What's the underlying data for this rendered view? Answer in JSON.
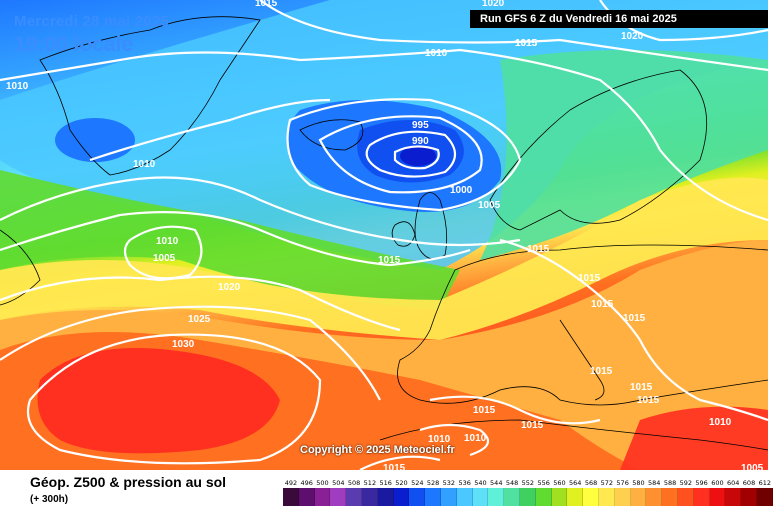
{
  "header": {
    "date_label": "Mercredi 28 mai 2025",
    "time_label": "19:00 locale",
    "run_label": "Run GFS 6 Z du Vendredi 16 mai 2025"
  },
  "copyright": "Copyright © 2025 Meteociel.fr",
  "footer": {
    "title": "Géop. Z500 & pression au sol",
    "subtitle": "(+ 300h)"
  },
  "legend": {
    "values": [
      "492",
      "496",
      "500",
      "504",
      "508",
      "512",
      "516",
      "520",
      "524",
      "528",
      "532",
      "536",
      "540",
      "544",
      "548",
      "552",
      "556",
      "560",
      "564",
      "568",
      "572",
      "576",
      "580",
      "584",
      "588",
      "592",
      "596",
      "600",
      "604",
      "608",
      "612"
    ],
    "colors": [
      "#3a0a3a",
      "#5e0e6e",
      "#8a2096",
      "#a03cc0",
      "#5a3cb0",
      "#3a28a0",
      "#1a1aa0",
      "#0a1ed0",
      "#1050f0",
      "#1e78ff",
      "#32a0ff",
      "#4ac8ff",
      "#5ee0f8",
      "#5ef0d8",
      "#50e0a0",
      "#40d060",
      "#60dc30",
      "#a0e020",
      "#e0f020",
      "#ffff40",
      "#ffe850",
      "#ffd050",
      "#ffb040",
      "#ff9030",
      "#ff7020",
      "#ff5020",
      "#ff3020",
      "#ee1010",
      "#c80808",
      "#a00000",
      "#700000"
    ]
  },
  "map": {
    "labels": [
      {
        "id": "1015-top",
        "text": "1015"
      },
      {
        "id": "1020-top",
        "text": "1020"
      },
      {
        "id": "1015-nw",
        "text": "1015"
      },
      {
        "id": "1010-left",
        "text": "1010"
      },
      {
        "id": "1010-north",
        "text": "1010"
      },
      {
        "id": "1015-north",
        "text": "1015"
      },
      {
        "id": "1020-ne",
        "text": "1020"
      },
      {
        "id": "995",
        "text": "995"
      },
      {
        "id": "990",
        "text": "990"
      },
      {
        "id": "1000",
        "text": "1000"
      },
      {
        "id": "1005-uk",
        "text": "1005"
      },
      {
        "id": "1010-green",
        "text": "1010"
      },
      {
        "id": "1010-atl",
        "text": "1010"
      },
      {
        "id": "1005-atl",
        "text": "1005"
      },
      {
        "id": "1015-atl",
        "text": "1015"
      },
      {
        "id": "1015-ns",
        "text": "1015"
      },
      {
        "id": "1020-atl",
        "text": "1020"
      },
      {
        "id": "1025",
        "text": "1025"
      },
      {
        "id": "1030",
        "text": "1030"
      },
      {
        "id": "1015-eu1",
        "text": "1015"
      },
      {
        "id": "1015-eu2",
        "text": "1015"
      },
      {
        "id": "1015-eu3",
        "text": "1015"
      },
      {
        "id": "1015-eu4",
        "text": "1015"
      },
      {
        "id": "1015-eu5",
        "text": "1015"
      },
      {
        "id": "1015-eu6",
        "text": "1015"
      },
      {
        "id": "1015-med1",
        "text": "1015"
      },
      {
        "id": "1015-med2",
        "text": "1015"
      },
      {
        "id": "1010-med1",
        "text": "1010"
      },
      {
        "id": "1010-med2",
        "text": "1010"
      },
      {
        "id": "1010-east",
        "text": "1010"
      },
      {
        "id": "1015-bottom",
        "text": "1015"
      },
      {
        "id": "1005-se",
        "text": "1005"
      }
    ]
  }
}
